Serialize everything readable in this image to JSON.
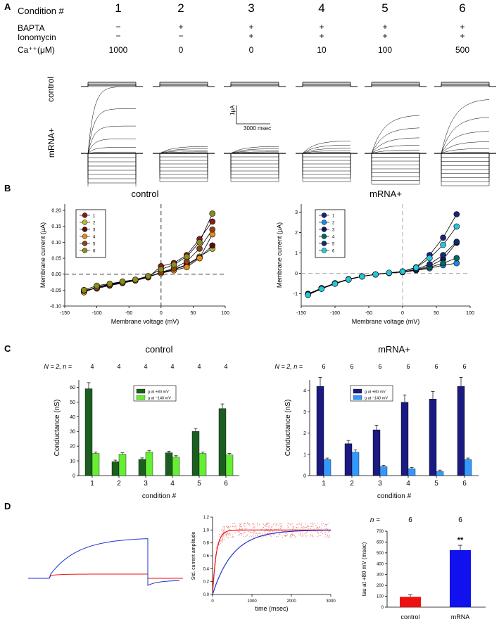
{
  "panel_letters": {
    "a": "A",
    "b": "B",
    "c": "C",
    "d": "D"
  },
  "panel_a": {
    "condition_label": "Condition #",
    "conditions": [
      "1",
      "2",
      "3",
      "4",
      "5",
      "6"
    ],
    "bapta_label": "BAPTA",
    "ionomycin_label": "Ionomycin",
    "ca_label": "Ca⁺⁺(μM)",
    "bapta": [
      "−",
      "+",
      "+",
      "+",
      "+",
      "+"
    ],
    "ionomycin": [
      "−",
      "−",
      "+",
      "+",
      "+",
      "+"
    ],
    "ca_values": [
      "1000",
      "0",
      "0",
      "10",
      "100",
      "500"
    ],
    "row_control": "control",
    "row_mrna": "mRNA+",
    "scale_y": "1μA",
    "scale_x": "3000 msec"
  },
  "chart_data": [
    {
      "type": "line",
      "id": "iv_control",
      "title": "control",
      "xlabel": "Membrane voltage (mV)",
      "ylabel": "Membrane current (μA)",
      "xlim": [
        -150,
        100
      ],
      "ylim": [
        -0.1,
        0.22
      ],
      "xticks": [
        -150,
        -100,
        -50,
        0,
        50,
        100
      ],
      "yticks": [
        -0.1,
        -0.05,
        0.0,
        0.05,
        0.1,
        0.15,
        0.2
      ],
      "x": [
        -120,
        -100,
        -80,
        -60,
        -40,
        -20,
        0,
        20,
        40,
        60,
        80
      ],
      "series": [
        {
          "name": "1",
          "color": "#8b1a1a",
          "values": [
            -0.05,
            -0.045,
            -0.036,
            -0.028,
            -0.02,
            -0.01,
            0.025,
            0.035,
            0.06,
            0.11,
            0.165
          ]
        },
        {
          "name": "2",
          "color": "#b8b830",
          "values": [
            -0.055,
            -0.042,
            -0.032,
            -0.025,
            -0.018,
            -0.008,
            0.005,
            0.015,
            0.03,
            0.055,
            0.08
          ]
        },
        {
          "name": "3",
          "color": "#5a1010",
          "values": [
            -0.056,
            -0.04,
            -0.033,
            -0.026,
            -0.019,
            -0.009,
            0.004,
            0.014,
            0.028,
            0.052,
            0.09
          ]
        },
        {
          "name": "4",
          "color": "#e68a1a",
          "values": [
            -0.057,
            -0.041,
            -0.031,
            -0.024,
            -0.018,
            -0.007,
            0.003,
            0.012,
            0.022,
            0.05,
            0.125
          ]
        },
        {
          "name": "5",
          "color": "#8b4513",
          "values": [
            -0.052,
            -0.043,
            -0.034,
            -0.027,
            -0.02,
            -0.009,
            0.006,
            0.018,
            0.04,
            0.08,
            0.14
          ]
        },
        {
          "name": "6",
          "color": "#8b8b20",
          "values": [
            -0.05,
            -0.036,
            -0.03,
            -0.023,
            -0.017,
            -0.006,
            0.015,
            0.03,
            0.055,
            0.1,
            0.19
          ]
        }
      ]
    },
    {
      "type": "line",
      "id": "iv_mrna",
      "title": "mRNA+",
      "xlabel": "Membrane voltage (mV)",
      "ylabel": "Membrane current (μA)",
      "xlim": [
        -150,
        100
      ],
      "ylim": [
        -1.6,
        3.4
      ],
      "xticks": [
        -150,
        -100,
        -50,
        0,
        50,
        100
      ],
      "yticks": [
        -1,
        0,
        1,
        2,
        3
      ],
      "x": [
        -140,
        -120,
        -100,
        -80,
        -60,
        -40,
        -20,
        0,
        20,
        40,
        60,
        80
      ],
      "series": [
        {
          "name": "1",
          "color": "#1a237e",
          "values": [
            -1.05,
            -0.75,
            -0.5,
            -0.3,
            -0.15,
            -0.05,
            0.02,
            0.1,
            0.3,
            0.9,
            1.75,
            2.9
          ]
        },
        {
          "name": "2",
          "color": "#1e88e5",
          "values": [
            -1.0,
            -0.72,
            -0.48,
            -0.28,
            -0.14,
            -0.05,
            0.02,
            0.06,
            0.15,
            0.25,
            0.4,
            0.5
          ]
        },
        {
          "name": "3",
          "color": "#0d1a5c",
          "values": [
            -1.02,
            -0.74,
            -0.49,
            -0.29,
            -0.15,
            -0.05,
            0.02,
            0.07,
            0.18,
            0.35,
            0.7,
            1.5
          ]
        },
        {
          "name": "4",
          "color": "#00695c",
          "values": [
            -1.03,
            -0.73,
            -0.5,
            -0.3,
            -0.15,
            -0.05,
            0.02,
            0.06,
            0.16,
            0.3,
            0.5,
            0.75
          ]
        },
        {
          "name": "5",
          "color": "#0d2d6e",
          "values": [
            -1.04,
            -0.75,
            -0.5,
            -0.3,
            -0.15,
            -0.05,
            0.02,
            0.07,
            0.2,
            0.45,
            0.9,
            1.55
          ]
        },
        {
          "name": "6",
          "color": "#26c6da",
          "values": [
            -1.05,
            -0.76,
            -0.51,
            -0.3,
            -0.15,
            -0.05,
            0.03,
            0.09,
            0.28,
            0.75,
            1.4,
            2.3
          ]
        }
      ]
    },
    {
      "type": "bar",
      "id": "cond_control",
      "title": "control",
      "xlabel": "condition #",
      "ylabel": "Conductance (nS)",
      "ylim": [
        0,
        65
      ],
      "yticks": [
        0,
        10,
        20,
        30,
        40,
        50,
        60
      ],
      "n_label": "N = 2, n =",
      "n_values": [
        "4",
        "4",
        "4",
        "4",
        "4",
        "4"
      ],
      "categories": [
        "1",
        "2",
        "3",
        "4",
        "5",
        "6"
      ],
      "series": [
        {
          "name": "g at +80 mV",
          "color": "#1b5e20",
          "values": [
            59,
            9.5,
            11,
            15.5,
            30,
            45.5
          ]
        },
        {
          "name": "g at −140 mV",
          "color": "#66ee33",
          "values": [
            15,
            14.5,
            16,
            12.5,
            15,
            14
          ]
        }
      ]
    },
    {
      "type": "bar",
      "id": "cond_mrna",
      "title": "mRNA+",
      "xlabel": "condition #",
      "ylabel": "Conductance (nS)",
      "ylim": [
        0,
        4.5
      ],
      "yticks": [
        0,
        1,
        2,
        3,
        4
      ],
      "n_label": "N = 2, n =",
      "n_values": [
        "6",
        "6",
        "6",
        "6",
        "6",
        "6"
      ],
      "categories": [
        "1",
        "2",
        "3",
        "4",
        "5",
        "6"
      ],
      "series": [
        {
          "name": "g at +80 mV",
          "color": "#1a1a80",
          "values": [
            4.2,
            1.5,
            2.15,
            3.45,
            3.6,
            4.2
          ]
        },
        {
          "name": "g at −140 mV",
          "color": "#3399ff",
          "values": [
            0.75,
            1.1,
            0.42,
            0.32,
            0.2,
            0.75
          ]
        }
      ]
    },
    {
      "type": "line",
      "id": "std_current",
      "title": "",
      "xlabel": "time (msec)",
      "ylabel": "Std. current amplitude",
      "xlim": [
        0,
        3000
      ],
      "ylim": [
        0,
        1.2
      ],
      "xticks": [
        0,
        1000,
        2000,
        3000
      ],
      "yticks": [
        0.0,
        0.2,
        0.4,
        0.6,
        0.8,
        1.0,
        1.2
      ],
      "series": [
        {
          "name": "control",
          "color": "#ee1111",
          "tau": 95
        },
        {
          "name": "mRNA",
          "color": "#2233cc",
          "tau": 520
        }
      ]
    },
    {
      "type": "bar",
      "id": "tau_bar",
      "title": "",
      "xlabel": "",
      "ylabel": "tau at +80 mV (msec)",
      "ylim": [
        0,
        700
      ],
      "yticks": [
        0,
        100,
        200,
        300,
        400,
        500,
        600,
        700
      ],
      "n_label": "n =",
      "n_values": [
        "6",
        "6"
      ],
      "categories": [
        "control",
        "mRNA"
      ],
      "values": [
        95,
        525
      ],
      "colors": [
        "#ee1111",
        "#1111ee"
      ],
      "annotation": "**"
    }
  ]
}
